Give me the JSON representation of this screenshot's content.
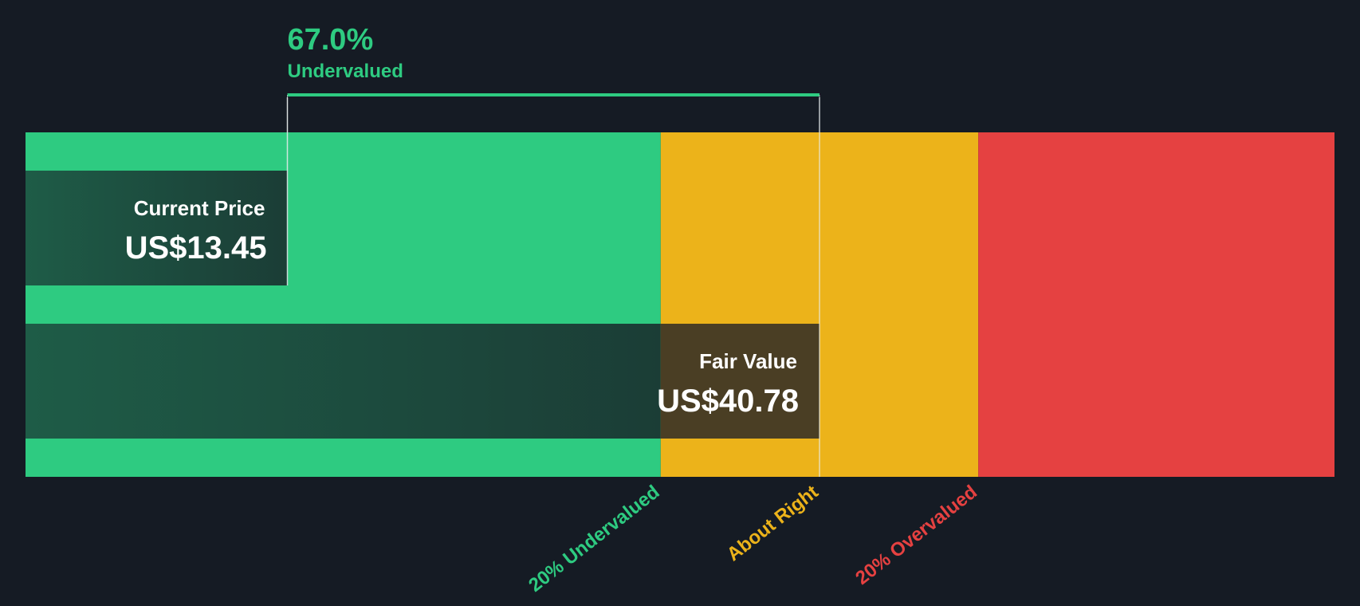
{
  "chart_data": {
    "type": "bar",
    "title": "",
    "xlabel": "",
    "ylabel": "",
    "currency": "US$",
    "current_price": {
      "label": "Current Price",
      "value": 13.45,
      "display": "US$13.45"
    },
    "fair_value": {
      "label": "Fair Value",
      "value": 40.78,
      "display": "US$40.78"
    },
    "discount": {
      "percent_text": "67.0%",
      "status": "Undervalued"
    },
    "zones": [
      {
        "name": "undervalued",
        "label": "20% Undervalued",
        "upper_ratio": 0.8,
        "color": "#2ecb81"
      },
      {
        "name": "about-right",
        "label": "About Right",
        "upper_ratio": 1.0,
        "color": "#ecb31a"
      },
      {
        "name": "overvalued",
        "label": "20% Overvalued",
        "upper_ratio": 1.2,
        "color": "#e54141"
      }
    ],
    "colors": {
      "background": "#151b24",
      "price_bar_dark": "#1c4a3c",
      "fair_bar_dark": "#1e5c47",
      "fair_bar_about_right": "#4a3e24",
      "text_light": "#ffffff",
      "accent": "#2ecb81"
    }
  }
}
